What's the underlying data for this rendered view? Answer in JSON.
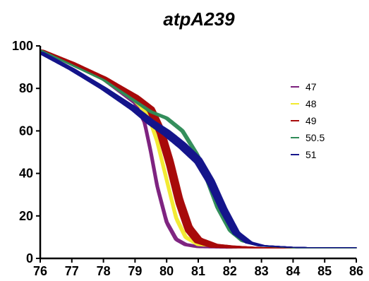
{
  "chart_data": {
    "type": "line",
    "title": "atpA239",
    "xlabel": "",
    "ylabel": "",
    "xlim": [
      76,
      86
    ],
    "ylim": [
      0,
      100
    ],
    "x_ticks": [
      "76",
      "77",
      "78",
      "79",
      "80",
      "81",
      "82",
      "83",
      "84",
      "85",
      "86"
    ],
    "y_ticks": [
      "0",
      "20",
      "40",
      "60",
      "80",
      "100"
    ],
    "grid": false,
    "legend_position": "right",
    "series": [
      {
        "name": "47",
        "color": "#7b1f7d",
        "replicates": 6,
        "x": [
          76,
          77,
          78,
          79,
          79.3,
          79.5,
          79.7,
          80,
          80.3,
          80.6,
          81,
          82,
          83,
          84,
          85,
          86
        ],
        "values": [
          98,
          91,
          84,
          73,
          64,
          50,
          34,
          17,
          9,
          6.5,
          5.5,
          5,
          5,
          5,
          5,
          5
        ]
      },
      {
        "name": "48",
        "color": "#f2ea2e",
        "replicates": 6,
        "x": [
          76,
          77,
          78,
          79,
          79.4,
          79.7,
          80,
          80.3,
          80.6,
          81,
          82,
          83,
          84,
          85,
          86
        ],
        "values": [
          98,
          91,
          84,
          74,
          68,
          55,
          37,
          19,
          10,
          6.5,
          5.2,
          5,
          5,
          5,
          5
        ]
      },
      {
        "name": "49",
        "color": "#a80c0c",
        "replicates": 40,
        "x": [
          76,
          77,
          78,
          79,
          79.5,
          79.8,
          80.1,
          80.4,
          80.7,
          81,
          81.5,
          82,
          83,
          84,
          85,
          86
        ],
        "values": [
          98,
          92,
          85,
          76,
          70,
          60,
          45,
          27,
          14,
          8.5,
          6,
          5.5,
          5,
          5,
          5,
          5
        ]
      },
      {
        "name": "50.5",
        "color": "#2e8b57",
        "replicates": 6,
        "x": [
          76,
          77,
          78,
          79,
          79.5,
          80,
          80.5,
          81,
          81.3,
          81.6,
          82,
          82.4,
          83,
          84,
          85,
          86
        ],
        "values": [
          98,
          91,
          84,
          74,
          69,
          66,
          60,
          48,
          36,
          24,
          13,
          8,
          5.8,
          5,
          5,
          5
        ]
      },
      {
        "name": "51",
        "color": "#16168c",
        "replicates": 40,
        "x": [
          76,
          77,
          78,
          79,
          79.5,
          80,
          80.5,
          81,
          81.4,
          81.8,
          82.2,
          82.6,
          83,
          84,
          85,
          86
        ],
        "values": [
          97,
          89,
          80,
          70,
          64,
          59,
          53,
          46,
          36,
          23,
          12,
          7.5,
          6,
          5.2,
          5,
          5
        ]
      }
    ]
  }
}
